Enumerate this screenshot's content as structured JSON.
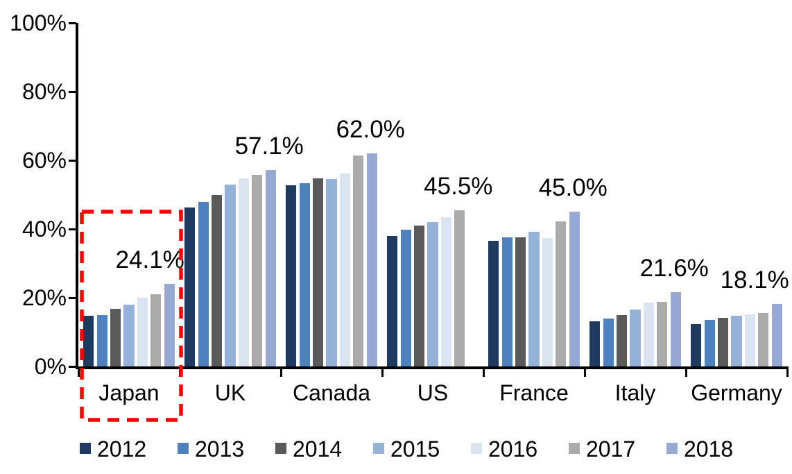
{
  "chart_data": {
    "type": "bar",
    "title": "",
    "xlabel": "",
    "ylabel": "",
    "categories": [
      "Japan",
      "UK",
      "Canada",
      "US",
      "France",
      "Italy",
      "Germany"
    ],
    "series": [
      {
        "name": "2012",
        "color": "#1F3A61",
        "values": [
          14.8,
          46.3,
          52.8,
          38.0,
          36.5,
          13.2,
          12.4
        ]
      },
      {
        "name": "2013",
        "color": "#4E81BD",
        "values": [
          15.0,
          47.8,
          53.3,
          39.8,
          37.5,
          14.0,
          13.6
        ]
      },
      {
        "name": "2014",
        "color": "#595959",
        "values": [
          16.7,
          49.8,
          54.8,
          41.0,
          37.5,
          15.0,
          14.1
        ]
      },
      {
        "name": "2015",
        "color": "#95B3D8",
        "values": [
          18.0,
          52.9,
          54.5,
          42.0,
          39.2,
          16.6,
          14.7
        ]
      },
      {
        "name": "2016",
        "color": "#DBE5F2",
        "values": [
          19.9,
          54.7,
          56.2,
          43.4,
          37.3,
          18.6,
          15.2
        ]
      },
      {
        "name": "2017",
        "color": "#ABABAB",
        "values": [
          21.1,
          55.7,
          61.4,
          45.5,
          42.3,
          18.8,
          15.5
        ]
      },
      {
        "name": "2018",
        "color": "#96A9D4",
        "values": [
          24.1,
          57.1,
          62.0,
          null,
          45.0,
          21.6,
          18.1
        ]
      }
    ],
    "value_labels": [
      "24.1%",
      "57.1%",
      "62.0%",
      "45.5%",
      "45.0%",
      "21.6%",
      "18.1%"
    ],
    "yticks": [
      "0%",
      "20%",
      "40%",
      "60%",
      "80%",
      "100%"
    ],
    "ylim": [
      0,
      100
    ],
    "grid": false,
    "legend_position": "bottom",
    "legend_items": [
      "2012",
      "2013",
      "2014",
      "2015",
      "2016",
      "2017",
      "2018"
    ],
    "highlight": {
      "category": "Japan",
      "shape": "dashed-box",
      "color": "#FF0000"
    }
  },
  "colors": {
    "axis": "#000000",
    "text": "#000000",
    "background": "#FFFFFF",
    "highlight_box": "#FF0000"
  }
}
